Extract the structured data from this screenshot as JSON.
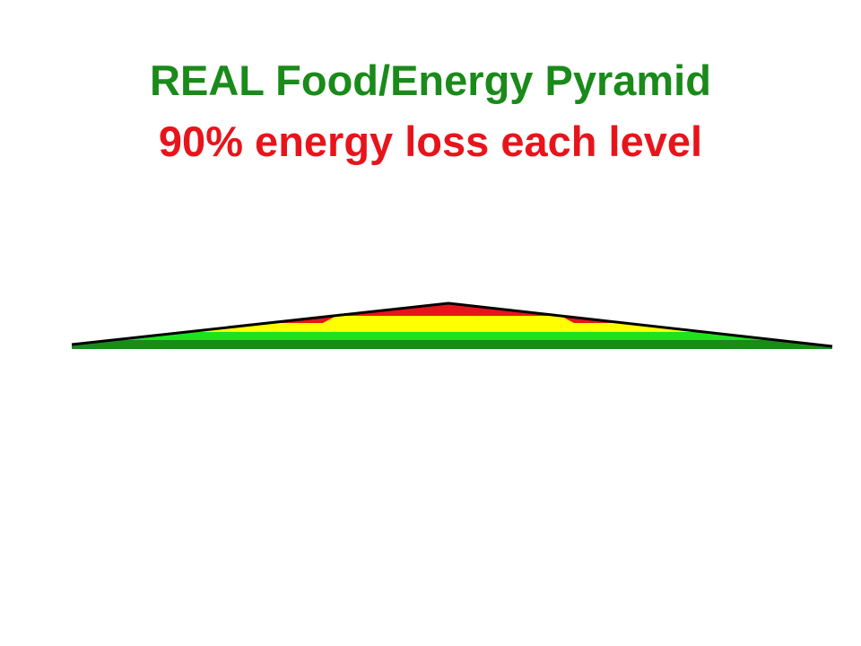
{
  "header": {
    "title": "REAL Food/Energy Pyramid",
    "subtitle": "90% energy loss each level"
  }
}
